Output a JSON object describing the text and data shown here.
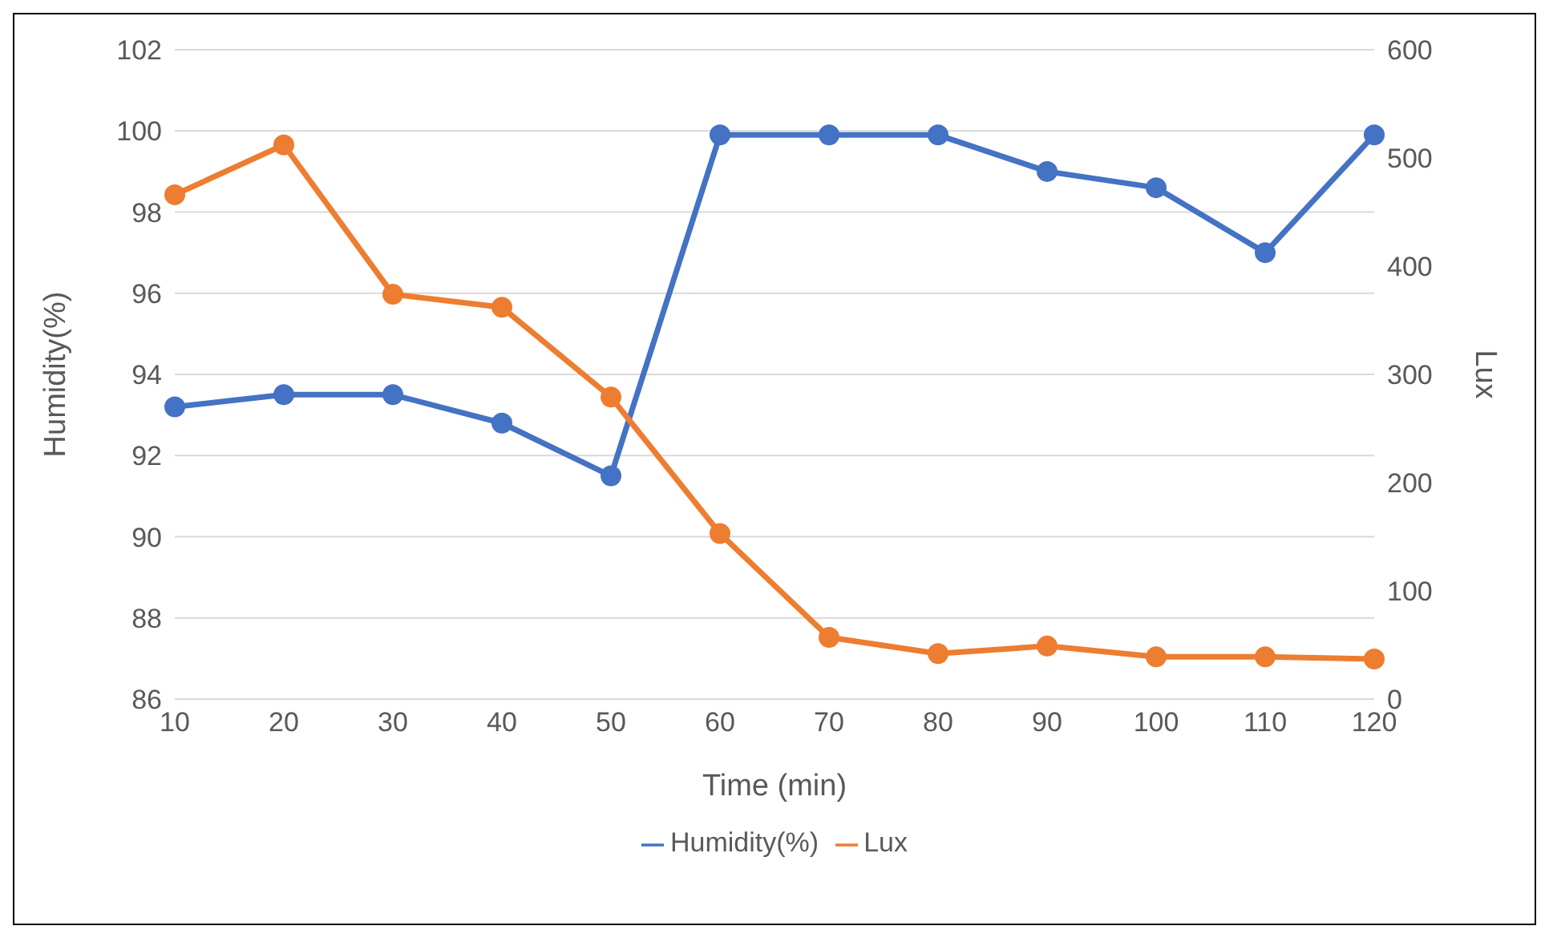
{
  "chart_data": {
    "type": "line",
    "xlabel": "Time (min)",
    "ylabel": "Humidity(%)",
    "y2label": "Lux",
    "categories": [
      "10",
      "20",
      "30",
      "40",
      "50",
      "60",
      "70",
      "80",
      "90",
      "100",
      "110",
      "120"
    ],
    "series": [
      {
        "name": "Humidity(%)",
        "color": "#4472c4",
        "values": [
          93.2,
          93.5,
          93.5,
          92.8,
          91.5,
          99.9,
          99.9,
          99.9,
          99.0,
          98.6,
          97.0,
          99.9
        ]
      },
      {
        "name": "Lux",
        "color": "#ed7d31",
        "axis": "y2",
        "values": [
          466,
          512,
          374,
          362,
          279,
          153,
          57,
          42,
          49,
          39,
          39,
          37
        ]
      }
    ],
    "ylim": [
      86,
      102
    ],
    "yticks": [
      86,
      88,
      90,
      92,
      94,
      96,
      98,
      100,
      102
    ],
    "y2lim": [
      0,
      600
    ],
    "y2ticks": [
      0,
      100,
      200,
      300,
      400,
      500,
      600
    ],
    "grid": "y",
    "legend": "bottom",
    "marker": "circle",
    "line_style": "solid"
  }
}
